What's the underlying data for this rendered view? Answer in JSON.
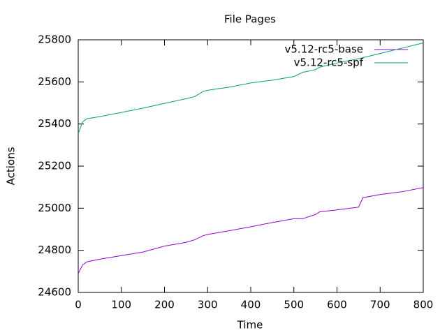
{
  "chart_data": {
    "type": "line",
    "title": "File Pages",
    "x_label": "Time",
    "y_label": "Actions",
    "x": [
      0,
      10,
      20,
      50,
      100,
      150,
      200,
      250,
      270,
      290,
      300,
      350,
      400,
      450,
      500,
      520,
      550,
      560,
      600,
      650,
      660,
      700,
      750,
      800
    ],
    "series": [
      {
        "name": "v5.12-rc5-base",
        "color": "#9400d3",
        "values": [
          24690,
          24730,
          24745,
          24758,
          24775,
          24792,
          24820,
          24838,
          24850,
          24870,
          24875,
          24893,
          24912,
          24932,
          24950,
          24950,
          24970,
          24983,
          24992,
          25005,
          25050,
          25065,
          25078,
          25098
        ]
      },
      {
        "name": "v5.12-rc5-spf",
        "color": "#009e73",
        "values": [
          25355,
          25410,
          25425,
          25435,
          25455,
          25475,
          25498,
          25520,
          25530,
          25555,
          25560,
          25575,
          25595,
          25608,
          25625,
          25645,
          25658,
          25670,
          25690,
          25710,
          25715,
          25735,
          25760,
          25785
        ]
      }
    ],
    "xlim": [
      0,
      800
    ],
    "xticks": [
      0,
      100,
      200,
      300,
      400,
      500,
      600,
      700,
      800
    ],
    "ylim": [
      24600,
      25800
    ],
    "yticks": [
      24600,
      24800,
      25000,
      25200,
      25400,
      25600,
      25800
    ],
    "legend": "top-right",
    "grid": false
  }
}
